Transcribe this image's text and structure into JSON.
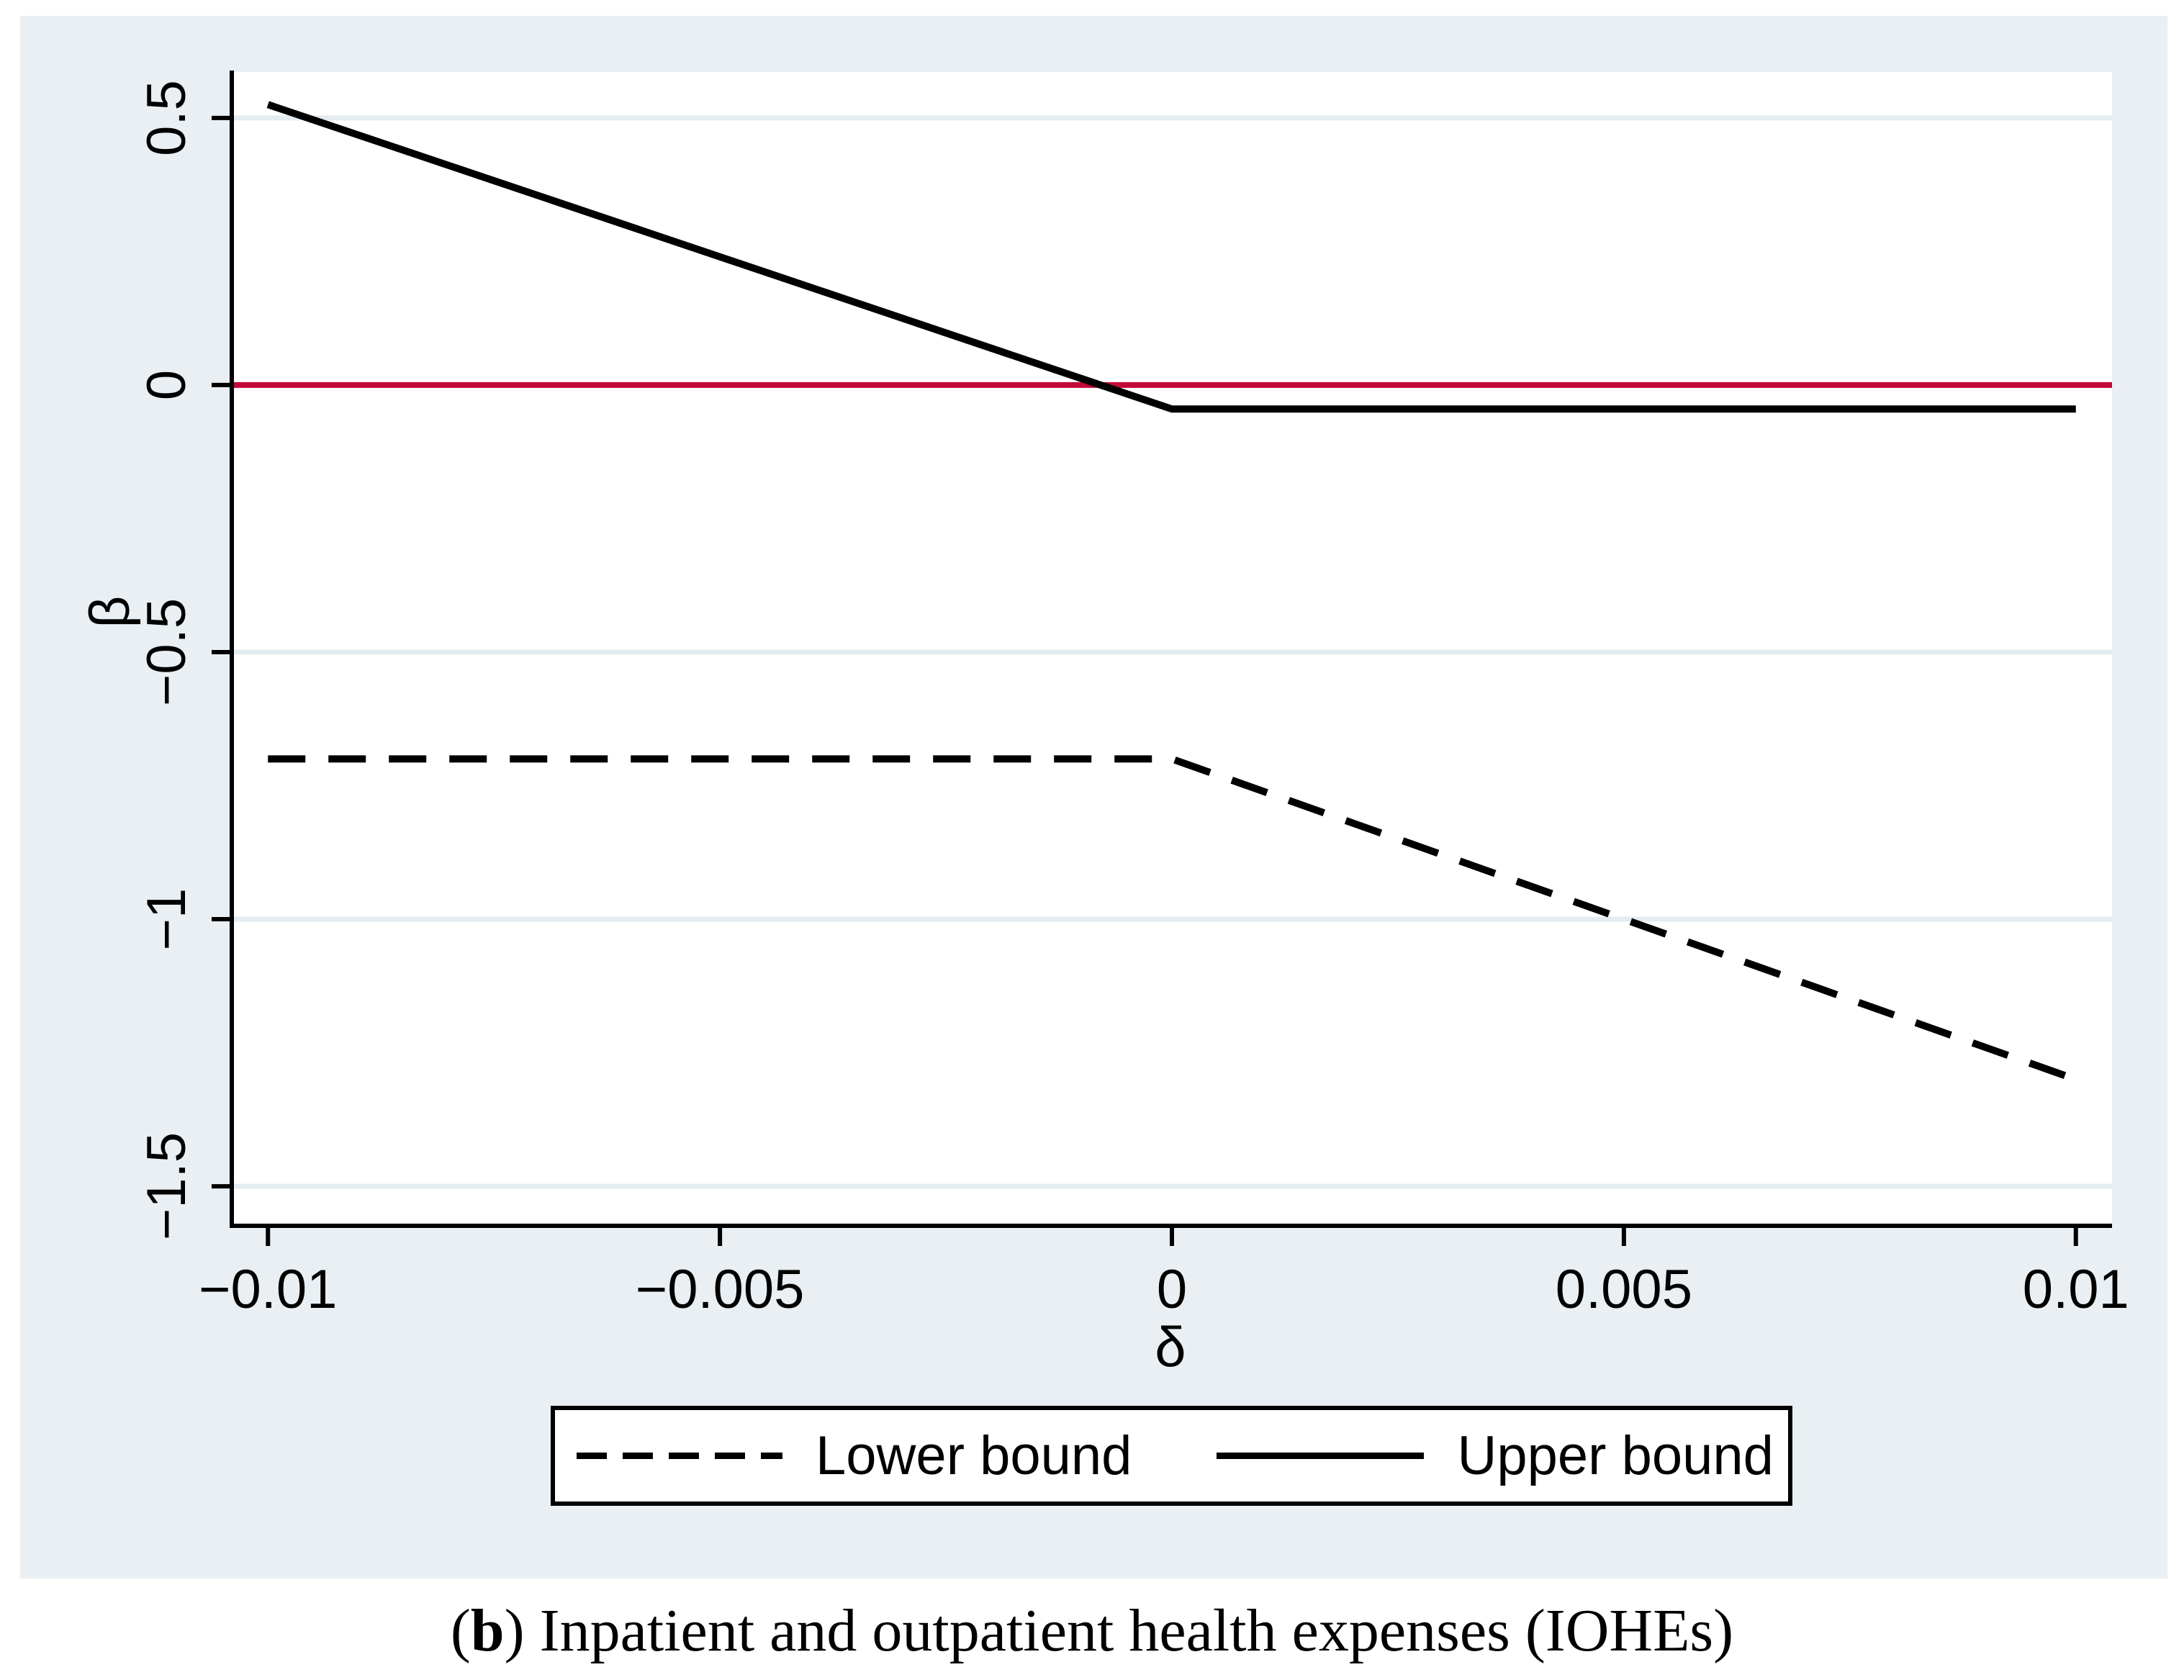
{
  "figure": {
    "caption": {
      "pre": "(",
      "bold": "b",
      "post": ") Inpatient and outpatient health expenses (IOHEs)"
    }
  },
  "chart_data": {
    "type": "line",
    "title": "",
    "xlabel": "δ",
    "ylabel": "β",
    "x_ticks": {
      "values": [
        -0.01,
        -0.005,
        0,
        0.005,
        0.01
      ],
      "labels": [
        "−0.01",
        "−0.005",
        "0",
        "0.005",
        "0.01"
      ]
    },
    "y_ticks": {
      "values": [
        0.5,
        0,
        -0.5,
        -1,
        -1.5
      ],
      "labels": [
        "0.5",
        "0",
        "−0.5",
        "−1",
        "−1.5"
      ]
    },
    "xlim": [
      -0.0104,
      0.0104
    ],
    "ylim": [
      -1.574,
      0.586
    ],
    "grid": "horizontal",
    "reference_line": {
      "y": 0,
      "color": "#c20a38"
    },
    "series": [
      {
        "name": "Lower bound",
        "style": "dashed",
        "color": "#000000",
        "points": [
          [
            -0.01,
            -0.7
          ],
          [
            0,
            -0.7
          ],
          [
            0.01,
            -1.3
          ]
        ]
      },
      {
        "name": "Upper bound",
        "style": "solid",
        "color": "#000000",
        "points": [
          [
            -0.01,
            0.525
          ],
          [
            0,
            -0.045
          ],
          [
            0.01,
            -0.045
          ]
        ]
      }
    ],
    "legend": {
      "position": "bottom",
      "entries": [
        "Lower bound",
        "Upper bound"
      ]
    }
  },
  "colors": {
    "panel": "#e9eff2",
    "plot_bg": "#ffffff",
    "grid": "#e3ecf1",
    "axis": "#000000",
    "reference": "#c20a38"
  }
}
